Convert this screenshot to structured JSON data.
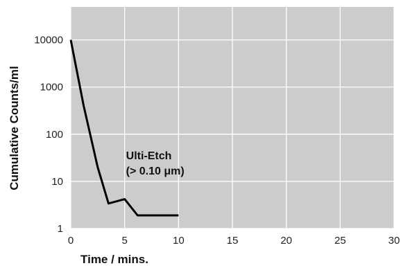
{
  "chart_data": {
    "type": "line",
    "xlabel": "Time / mins.",
    "ylabel": "Cumulative Counts/ml",
    "xlim": [
      0,
      30
    ],
    "ylim": [
      1,
      50000
    ],
    "yscale": "log",
    "x_ticks": [
      "0",
      "5",
      "10",
      "15",
      "20",
      "25",
      "30"
    ],
    "y_ticks": [
      "1",
      "10",
      "100",
      "1000",
      "10000"
    ],
    "grid": true,
    "plot_background": "#cccccc",
    "grid_color": "#ffffff",
    "series": [
      {
        "name": "Ulti-Etch",
        "color": "#000000",
        "x": [
          0,
          1.2,
          2.5,
          3.5,
          5,
          6.2,
          10
        ],
        "y": [
          10000,
          400,
          20,
          3.4,
          4.2,
          1.9,
          1.9
        ]
      }
    ],
    "annotations": [
      {
        "line1": "Ulti-Etch",
        "line2": "(> 0.10 μm)",
        "x": 5,
        "y": 17
      }
    ]
  }
}
